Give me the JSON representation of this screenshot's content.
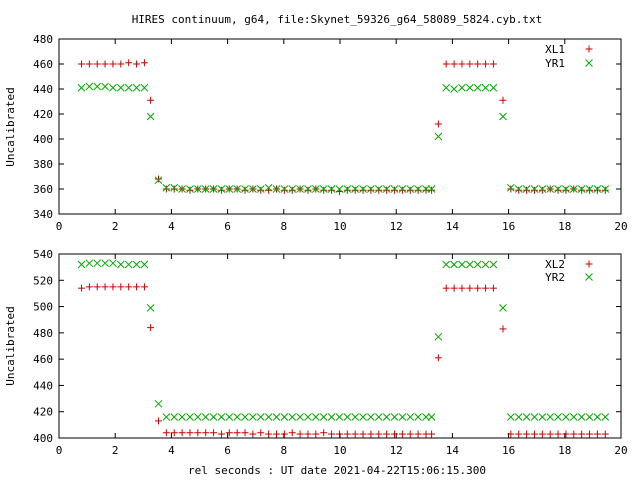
{
  "title": "HIRES continuum, g64, file:Skynet_59326_g64_58089_5824.cyb.txt",
  "xlabel": "rel seconds : UT date 2021-04-22T15:06:15.300",
  "chart_data": [
    {
      "type": "scatter",
      "ylabel": "Uncalibrated",
      "xlim": [
        0,
        20
      ],
      "ylim": [
        340,
        480
      ],
      "xticks": [
        0,
        2,
        4,
        6,
        8,
        10,
        12,
        14,
        16,
        18,
        20
      ],
      "yticks": [
        340,
        360,
        380,
        400,
        420,
        440,
        460,
        480
      ],
      "legend_position": "top-right",
      "series": [
        {
          "name": "XL1",
          "marker": "plus",
          "color": "#cc0000",
          "x": [
            0.8,
            1.08,
            1.36,
            1.64,
            1.92,
            2.2,
            2.48,
            2.76,
            3.04,
            3.26,
            3.54,
            3.82,
            4.1,
            4.38,
            4.66,
            4.94,
            5.22,
            5.5,
            5.78,
            6.06,
            6.34,
            6.62,
            6.9,
            7.18,
            7.46,
            7.74,
            8.02,
            8.3,
            8.58,
            8.86,
            9.14,
            9.42,
            9.7,
            9.98,
            10.26,
            10.54,
            10.82,
            11.1,
            11.38,
            11.66,
            11.94,
            12.22,
            12.5,
            12.78,
            13.06,
            13.26,
            13.5,
            13.78,
            14.06,
            14.34,
            14.62,
            14.9,
            15.18,
            15.46,
            15.8,
            16.08,
            16.36,
            16.64,
            16.92,
            17.2,
            17.48,
            17.76,
            18.04,
            18.32,
            18.6,
            18.88,
            19.16,
            19.44
          ],
          "y": [
            460,
            460,
            460,
            460,
            460,
            460,
            461,
            460,
            461,
            431,
            368,
            360,
            360,
            360,
            359,
            360,
            360,
            360,
            359,
            360,
            360,
            359,
            360,
            359,
            359,
            360,
            359,
            359,
            360,
            359,
            360,
            359,
            359,
            358,
            359,
            359,
            359,
            359,
            359,
            359,
            359,
            359,
            359,
            359,
            359,
            359,
            412,
            460,
            460,
            460,
            460,
            460,
            460,
            460,
            431,
            360,
            359,
            359,
            359,
            359,
            360,
            359,
            359,
            360,
            359,
            359,
            359,
            359
          ]
        },
        {
          "name": "YR1",
          "marker": "cross",
          "color": "#00aa00",
          "x": [
            0.8,
            1.08,
            1.36,
            1.64,
            1.92,
            2.2,
            2.48,
            2.76,
            3.04,
            3.26,
            3.54,
            3.82,
            4.1,
            4.38,
            4.66,
            4.94,
            5.22,
            5.5,
            5.78,
            6.06,
            6.34,
            6.62,
            6.9,
            7.18,
            7.46,
            7.74,
            8.02,
            8.3,
            8.58,
            8.86,
            9.14,
            9.42,
            9.7,
            9.98,
            10.26,
            10.54,
            10.82,
            11.1,
            11.38,
            11.66,
            11.94,
            12.22,
            12.5,
            12.78,
            13.06,
            13.26,
            13.5,
            13.78,
            14.06,
            14.34,
            14.62,
            14.9,
            15.18,
            15.46,
            15.8,
            16.08,
            16.36,
            16.64,
            16.92,
            17.2,
            17.48,
            17.76,
            18.04,
            18.32,
            18.6,
            18.88,
            19.16,
            19.44
          ],
          "y": [
            441,
            442,
            442,
            442,
            441,
            441,
            441,
            441,
            441,
            418,
            367,
            361,
            361,
            360,
            360,
            360,
            360,
            360,
            360,
            360,
            360,
            360,
            360,
            360,
            361,
            360,
            360,
            360,
            360,
            360,
            360,
            360,
            360,
            360,
            360,
            360,
            360,
            360,
            360,
            360,
            360,
            360,
            360,
            360,
            360,
            360,
            402,
            441,
            440,
            441,
            441,
            441,
            441,
            441,
            418,
            361,
            360,
            360,
            360,
            360,
            360,
            360,
            360,
            360,
            360,
            360,
            360,
            360
          ]
        }
      ]
    },
    {
      "type": "scatter",
      "ylabel": "Uncalibrated",
      "xlim": [
        0,
        20
      ],
      "ylim": [
        400,
        540
      ],
      "xticks": [
        0,
        2,
        4,
        6,
        8,
        10,
        12,
        14,
        16,
        18,
        20
      ],
      "yticks": [
        400,
        420,
        440,
        460,
        480,
        500,
        520,
        540
      ],
      "legend_position": "top-right",
      "series": [
        {
          "name": "XL2",
          "marker": "plus",
          "color": "#cc0000",
          "x": [
            0.8,
            1.08,
            1.36,
            1.64,
            1.92,
            2.2,
            2.48,
            2.76,
            3.04,
            3.26,
            3.54,
            3.82,
            4.1,
            4.38,
            4.66,
            4.94,
            5.22,
            5.5,
            5.78,
            6.06,
            6.34,
            6.62,
            6.9,
            7.18,
            7.46,
            7.74,
            8.02,
            8.3,
            8.58,
            8.86,
            9.14,
            9.42,
            9.7,
            9.98,
            10.26,
            10.54,
            10.82,
            11.1,
            11.38,
            11.66,
            11.94,
            12.22,
            12.5,
            12.78,
            13.06,
            13.26,
            13.5,
            13.78,
            14.06,
            14.34,
            14.62,
            14.9,
            15.18,
            15.46,
            15.8,
            16.08,
            16.36,
            16.64,
            16.92,
            17.2,
            17.48,
            17.76,
            18.04,
            18.32,
            18.6,
            18.88,
            19.16,
            19.44
          ],
          "y": [
            514,
            515,
            515,
            515,
            515,
            515,
            515,
            515,
            515,
            484,
            413,
            404,
            404,
            404,
            404,
            404,
            404,
            404,
            403,
            404,
            404,
            404,
            403,
            404,
            403,
            403,
            403,
            404,
            403,
            403,
            403,
            404,
            403,
            403,
            403,
            403,
            403,
            403,
            403,
            403,
            403,
            403,
            403,
            403,
            403,
            403,
            461,
            514,
            514,
            514,
            514,
            514,
            514,
            514,
            483,
            403,
            403,
            403,
            403,
            403,
            403,
            403,
            403,
            403,
            403,
            403,
            403,
            403
          ]
        },
        {
          "name": "YR2",
          "marker": "cross",
          "color": "#00aa00",
          "x": [
            0.8,
            1.08,
            1.36,
            1.64,
            1.92,
            2.2,
            2.48,
            2.76,
            3.04,
            3.26,
            3.54,
            3.82,
            4.1,
            4.38,
            4.66,
            4.94,
            5.22,
            5.5,
            5.78,
            6.06,
            6.34,
            6.62,
            6.9,
            7.18,
            7.46,
            7.74,
            8.02,
            8.3,
            8.58,
            8.86,
            9.14,
            9.42,
            9.7,
            9.98,
            10.26,
            10.54,
            10.82,
            11.1,
            11.38,
            11.66,
            11.94,
            12.22,
            12.5,
            12.78,
            13.06,
            13.26,
            13.5,
            13.78,
            14.06,
            14.34,
            14.62,
            14.9,
            15.18,
            15.46,
            15.8,
            16.08,
            16.36,
            16.64,
            16.92,
            17.2,
            17.48,
            17.76,
            18.04,
            18.32,
            18.6,
            18.88,
            19.16,
            19.44
          ],
          "y": [
            532,
            533,
            533,
            533,
            533,
            532,
            532,
            532,
            532,
            499,
            426,
            416,
            416,
            416,
            416,
            416,
            416,
            416,
            416,
            416,
            416,
            416,
            416,
            416,
            416,
            416,
            416,
            416,
            416,
            416,
            416,
            416,
            416,
            416,
            416,
            416,
            416,
            416,
            416,
            416,
            416,
            416,
            416,
            416,
            416,
            416,
            477,
            532,
            532,
            532,
            532,
            532,
            532,
            532,
            499,
            416,
            416,
            416,
            416,
            416,
            416,
            416,
            416,
            416,
            416,
            416,
            416,
            416
          ]
        }
      ]
    }
  ]
}
